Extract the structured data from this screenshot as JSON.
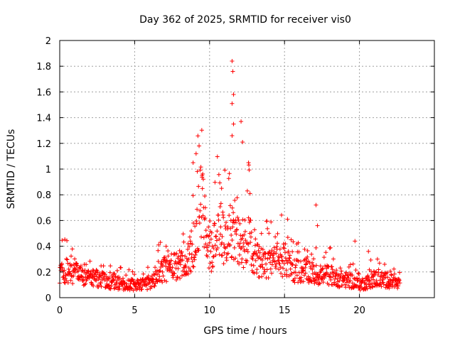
{
  "chart_data": {
    "type": "scatter",
    "title": "Day 362 of 2025, SRMTID for receiver vis0",
    "xlabel": "GPS time / hours",
    "ylabel": "SRMTID / TECUs",
    "xlim": [
      0,
      25
    ],
    "ylim": [
      0,
      2
    ],
    "xticks": [
      "0",
      "5",
      "10",
      "15",
      "20"
    ],
    "yticks": [
      "0",
      "0.2",
      "0.4",
      "0.6",
      "0.8",
      "1",
      "1.2",
      "1.4",
      "1.6",
      "1.8",
      "2"
    ],
    "grid": true,
    "marker": "+",
    "colors": {
      "series": "#ff0000",
      "grid": "#a0a0a0",
      "axis": "#000000"
    },
    "series": [
      {
        "name": "vis0",
        "x_range": [
          0,
          22.7
        ],
        "sample_interval_hours": 0.02,
        "trend": [
          [
            0.0,
            0.2
          ],
          [
            0.5,
            0.21
          ],
          [
            1.0,
            0.19
          ],
          [
            1.5,
            0.17
          ],
          [
            2.0,
            0.15
          ],
          [
            2.5,
            0.15
          ],
          [
            3.0,
            0.14
          ],
          [
            3.5,
            0.12
          ],
          [
            4.0,
            0.11
          ],
          [
            4.5,
            0.1
          ],
          [
            5.0,
            0.1
          ],
          [
            5.5,
            0.1
          ],
          [
            6.0,
            0.12
          ],
          [
            6.5,
            0.18
          ],
          [
            7.0,
            0.22
          ],
          [
            7.5,
            0.24
          ],
          [
            8.0,
            0.24
          ],
          [
            8.5,
            0.27
          ],
          [
            9.0,
            0.45
          ],
          [
            9.2,
            0.6
          ],
          [
            9.4,
            0.75
          ],
          [
            9.6,
            0.65
          ],
          [
            9.8,
            0.45
          ],
          [
            10.0,
            0.35
          ],
          [
            10.3,
            0.4
          ],
          [
            10.6,
            0.55
          ],
          [
            11.0,
            0.45
          ],
          [
            11.4,
            0.5
          ],
          [
            11.7,
            0.55
          ],
          [
            12.0,
            0.4
          ],
          [
            12.3,
            0.42
          ],
          [
            12.6,
            0.5
          ],
          [
            13.0,
            0.3
          ],
          [
            13.5,
            0.28
          ],
          [
            14.0,
            0.27
          ],
          [
            14.5,
            0.28
          ],
          [
            15.0,
            0.3
          ],
          [
            15.5,
            0.22
          ],
          [
            16.0,
            0.2
          ],
          [
            16.5,
            0.22
          ],
          [
            17.0,
            0.18
          ],
          [
            17.5,
            0.17
          ],
          [
            18.0,
            0.18
          ],
          [
            18.5,
            0.15
          ],
          [
            19.0,
            0.14
          ],
          [
            19.5,
            0.13
          ],
          [
            20.0,
            0.1
          ],
          [
            20.5,
            0.12
          ],
          [
            21.0,
            0.15
          ],
          [
            21.5,
            0.14
          ],
          [
            22.0,
            0.13
          ],
          [
            22.7,
            0.1
          ]
        ],
        "peaks": [
          [
            6.6,
            0.41
          ],
          [
            8.9,
            1.05
          ],
          [
            9.1,
            1.12
          ],
          [
            9.3,
            1.18
          ],
          [
            9.5,
            0.95
          ],
          [
            10.8,
            0.85
          ],
          [
            11.5,
            1.84
          ],
          [
            11.55,
            1.76
          ],
          [
            11.6,
            1.58
          ],
          [
            11.5,
            1.51
          ],
          [
            11.6,
            1.35
          ],
          [
            11.5,
            1.26
          ],
          [
            12.1,
            1.37
          ],
          [
            12.2,
            1.21
          ],
          [
            12.6,
            1.05
          ],
          [
            12.7,
            0.81
          ],
          [
            15.2,
            0.61
          ],
          [
            17.1,
            0.72
          ],
          [
            17.2,
            0.56
          ],
          [
            19.7,
            0.44
          ],
          [
            20.6,
            0.36
          ],
          [
            21.2,
            0.3
          ]
        ]
      }
    ]
  }
}
